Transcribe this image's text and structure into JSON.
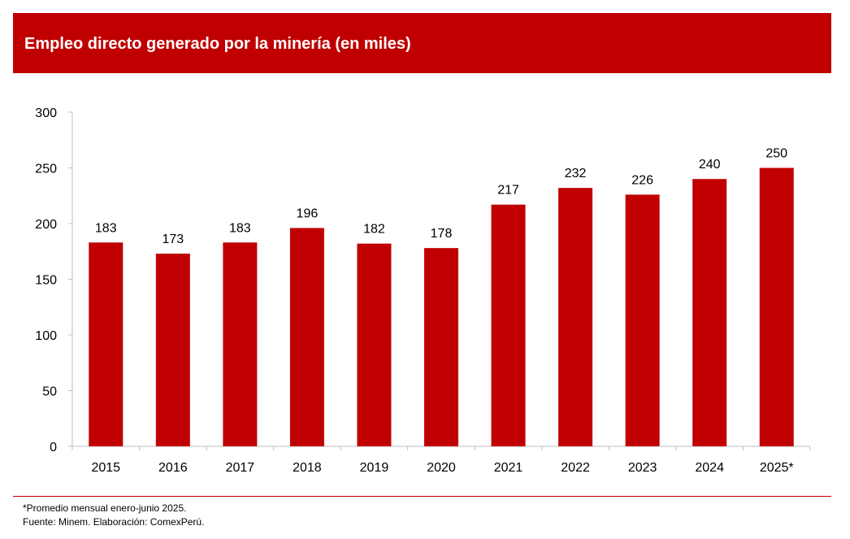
{
  "header": {
    "title": "Empleo directo generado por la minería (en miles)"
  },
  "colors": {
    "accent": "#c00000",
    "bar": "#c00000",
    "axis": "#bfbfbf",
    "text": "#000000"
  },
  "chart_data": {
    "type": "bar",
    "title": "Empleo directo generado por la minería (en miles)",
    "categories": [
      "2015",
      "2016",
      "2017",
      "2018",
      "2019",
      "2020",
      "2021",
      "2022",
      "2023",
      "2024",
      "2025*"
    ],
    "values": [
      183,
      173,
      183,
      196,
      182,
      178,
      217,
      232,
      226,
      240,
      250
    ],
    "data_labels": [
      "183",
      "173",
      "183",
      "196",
      "182",
      "178",
      "217",
      "232",
      "226",
      "240",
      "250"
    ],
    "ylim": [
      0,
      300
    ],
    "yticks": [
      0,
      50,
      100,
      150,
      200,
      250,
      300
    ],
    "ytick_labels": [
      "0",
      "50",
      "100",
      "150",
      "200",
      "250",
      "300"
    ],
    "xlabel": "",
    "ylabel": "",
    "grid": false,
    "legend": "none"
  },
  "footer": {
    "note": "*Promedio mensual enero-junio 2025.",
    "source": "Fuente: Minem. Elaboración: ComexPerú."
  }
}
